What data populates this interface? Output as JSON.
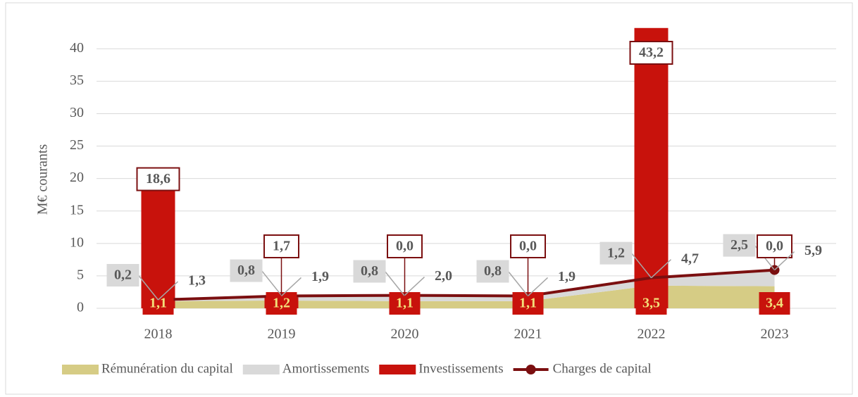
{
  "chart_data": {
    "type": "combo",
    "y_label": "M€ courants",
    "categories": [
      "2018",
      "2019",
      "2020",
      "2021",
      "2022",
      "2023"
    ],
    "series": [
      {
        "name": "Rémunération du capital",
        "kind": "area",
        "color": "#d6cc85",
        "values": [
          1.1,
          1.2,
          1.1,
          1.1,
          3.5,
          3.4
        ],
        "value_labels": [
          "1,1",
          "1,2",
          "1,1",
          "1,1",
          "3,5",
          "3,4"
        ]
      },
      {
        "name": "Amortissements",
        "kind": "area",
        "color": "#d9d9d9",
        "values": [
          0.2,
          0.8,
          0.8,
          0.8,
          1.2,
          2.5
        ],
        "value_labels": [
          "0,2",
          "0,8",
          "0,8",
          "0,8",
          "1,2",
          "2,5"
        ]
      },
      {
        "name": "Investissements",
        "kind": "bar",
        "color": "#c8120c",
        "values": [
          18.6,
          1.7,
          0.0,
          0.0,
          43.2,
          0.0
        ],
        "value_labels": [
          "18,6",
          "1,7",
          "0,0",
          "0,0",
          "43,2",
          "0,0"
        ]
      },
      {
        "name": "Charges de capital",
        "kind": "line",
        "color": "#7b0f10",
        "values": [
          1.3,
          1.9,
          2.0,
          1.9,
          4.7,
          5.9
        ],
        "value_labels": [
          "1,3",
          "1,9",
          "2,0",
          "1,9",
          "4,7",
          "5,9"
        ]
      }
    ],
    "ylim": [
      0,
      43.5
    ],
    "yticks": [
      0,
      5,
      10,
      15,
      20,
      25,
      30,
      35,
      40
    ],
    "grid": true
  }
}
